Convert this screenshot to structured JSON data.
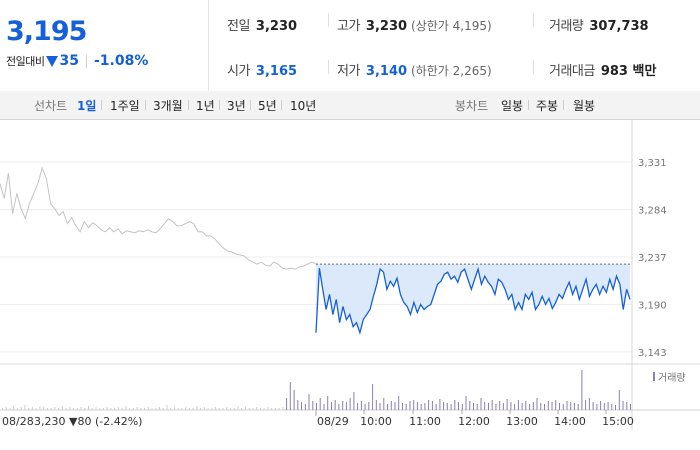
{
  "quote": {
    "price": "3,195",
    "change_label": "전일대비",
    "change_amount": "35",
    "change_percent": "-1.08%"
  },
  "stats": {
    "prev_close_label": "전일",
    "prev_close": "3,230",
    "open_label": "시가",
    "open": "3,165",
    "high_label": "고가",
    "high": "3,230",
    "upper_limit": "(상한가 4,195)",
    "low_label": "저가",
    "low": "3,140",
    "lower_limit": "(하한가 2,265)",
    "volume_label": "거래량",
    "volume": "307,738",
    "value_label": "거래대금",
    "value": "983 백만"
  },
  "nav": {
    "line_chart_label": "선차트",
    "periods": [
      "1일",
      "1주일",
      "3개월",
      "1년",
      "3년",
      "5년",
      "10년"
    ],
    "active_period": "1일",
    "candle_chart_label": "봉차트",
    "candles": [
      "일봉",
      "주봉",
      "월봉"
    ]
  },
  "colors": {
    "accent": "#1560d8",
    "prev_line": "#c4c4c4",
    "volume": "#8c7fb3",
    "fill": "#dbe9fb"
  },
  "chart_data": {
    "type": "line",
    "y_ticks": [
      "3,331",
      "3,284",
      "3,237",
      "3,190",
      "3,143"
    ],
    "y_tick_values": [
      3331,
      3284,
      3237,
      3190,
      3143
    ],
    "ylim": [
      3135,
      3345
    ],
    "reference_level": 3230,
    "prev_day_label": "08/28",
    "prev_day_note": "3,230 ▼80 (-2.42%)",
    "today_label": "08/29",
    "x_ticks": [
      "10:00",
      "11:00",
      "12:00",
      "13:00",
      "14:00",
      "15:00"
    ],
    "volume_legend": "거래량",
    "series": [
      {
        "values": [
          3310,
          3295,
          3320,
          3280,
          3300,
          3285,
          3275,
          3290,
          3300,
          3310,
          3325,
          3315,
          3290,
          3285,
          3278,
          3282,
          3270,
          3276,
          3268,
          3262,
          3272,
          3266,
          3271,
          3268,
          3264,
          3262,
          3266,
          3262,
          3265,
          3260,
          3263,
          3262,
          3261,
          3263,
          3262,
          3264,
          3262,
          3261,
          3265,
          3270,
          3275,
          3272,
          3268,
          3268,
          3270,
          3272,
          3270,
          3262,
          3262,
          3258,
          3258,
          3255,
          3250,
          3246,
          3243,
          3242,
          3240,
          3239,
          3238,
          3234,
          3232,
          3230,
          3232,
          3229,
          3228,
          3232,
          3230,
          3226,
          3225,
          3226,
          3225,
          3227,
          3228,
          3230,
          3232,
          3230
        ]
      },
      {
        "values": [
          3162,
          3226,
          3205,
          3185,
          3200,
          3180,
          3195,
          3172,
          3188,
          3175,
          3180,
          3168,
          3172,
          3162,
          3175,
          3180,
          3185,
          3198,
          3210,
          3225,
          3222,
          3205,
          3213,
          3208,
          3216,
          3200,
          3192,
          3188,
          3180,
          3192,
          3182,
          3190,
          3185,
          3188,
          3190,
          3200,
          3210,
          3213,
          3220,
          3222,
          3215,
          3218,
          3212,
          3222,
          3225,
          3215,
          3205,
          3215,
          3225,
          3210,
          3218,
          3212,
          3208,
          3200,
          3215,
          3212,
          3205,
          3195,
          3200,
          3185,
          3192,
          3185,
          3200,
          3195,
          3202,
          3185,
          3190,
          3198,
          3190,
          3196,
          3186,
          3192,
          3200,
          3196,
          3205,
          3212,
          3200,
          3208,
          3195,
          3205,
          3215,
          3198,
          3205,
          3210,
          3200,
          3208,
          3202,
          3215,
          3205,
          3218,
          3210,
          3185,
          3205,
          3195
        ]
      }
    ],
    "volume": [
      2,
      3,
      2,
      4,
      2,
      3,
      5,
      2,
      3,
      2,
      4,
      3,
      2,
      2,
      3,
      2,
      4,
      2,
      3,
      2,
      2,
      3,
      2,
      4,
      2,
      3,
      2,
      2,
      3,
      2,
      2,
      3,
      2,
      4,
      2,
      2,
      3,
      2,
      2,
      3,
      2,
      2,
      3,
      2,
      5,
      2,
      3,
      2,
      2,
      3,
      2,
      2,
      4,
      2,
      3,
      2,
      2,
      3,
      2,
      2,
      3,
      2,
      2,
      4,
      2,
      3,
      2,
      2,
      3,
      2,
      2,
      3,
      2,
      2,
      2,
      3,
      12,
      28,
      20,
      10,
      8,
      6,
      16,
      9,
      7,
      12,
      6,
      14,
      8,
      10,
      6,
      9,
      8,
      12,
      18,
      7,
      9,
      6,
      8,
      26,
      10,
      7,
      12,
      6,
      9,
      8,
      14,
      7,
      6,
      9,
      10,
      8,
      6,
      7,
      10,
      9,
      6,
      11,
      8,
      7,
      6,
      10,
      8,
      6,
      14,
      9,
      7,
      6,
      12,
      8,
      7,
      10,
      6,
      9,
      7,
      11,
      8,
      6,
      10,
      7,
      9,
      6,
      8,
      12,
      7,
      6,
      9,
      8,
      10,
      7,
      6,
      9,
      8,
      7,
      6,
      40,
      10,
      12,
      8,
      6,
      9,
      7,
      8,
      6,
      5,
      20,
      9,
      8,
      6
    ]
  }
}
